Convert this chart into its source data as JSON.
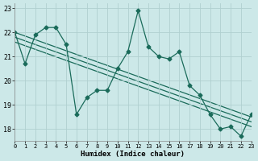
{
  "xlabel": "Humidex (Indice chaleur)",
  "xlim": [
    0,
    23
  ],
  "ylim": [
    17.5,
    23.2
  ],
  "yticks": [
    18,
    19,
    20,
    21,
    22,
    23
  ],
  "xticks": [
    0,
    1,
    2,
    3,
    4,
    5,
    6,
    7,
    8,
    9,
    10,
    11,
    12,
    13,
    14,
    15,
    16,
    17,
    18,
    19,
    20,
    21,
    22,
    23
  ],
  "bg_color": "#cce8e8",
  "grid_color": "#b0d0d0",
  "line_color": "#1a6b5a",
  "line1_x": [
    0,
    1,
    2,
    3,
    4,
    5,
    6,
    7,
    8,
    9,
    10,
    11,
    12,
    13,
    14,
    15,
    16,
    17,
    18,
    19,
    20,
    21,
    22,
    23
  ],
  "line1_y": [
    22.0,
    20.7,
    21.9,
    22.2,
    22.2,
    21.5,
    18.6,
    19.3,
    19.6,
    19.6,
    20.5,
    21.2,
    22.9,
    21.4,
    21.0,
    20.9,
    21.2,
    19.8,
    19.4,
    18.6,
    18.0,
    18.1,
    17.7,
    18.6
  ],
  "trend1_x": [
    0,
    23
  ],
  "trend1_y": [
    22.0,
    18.5
  ],
  "trend2_x": [
    0,
    23
  ],
  "trend2_y": [
    21.8,
    18.3
  ],
  "trend3_x": [
    0,
    23
  ],
  "trend3_y": [
    21.6,
    18.1
  ],
  "marker": "D",
  "markersize": 2.5,
  "linewidth": 0.9
}
